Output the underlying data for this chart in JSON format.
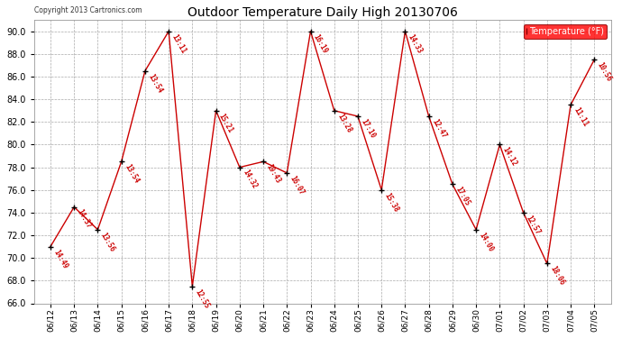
{
  "title": "Outdoor Temperature Daily High 20130706",
  "copyright": "Copyright 2013 Cartronics.com",
  "legend_label": "Temperature (°F)",
  "points": [
    [
      "06/12",
      71.0,
      "14:49"
    ],
    [
      "06/13",
      74.5,
      "14:37"
    ],
    [
      "06/14",
      72.5,
      "13:56"
    ],
    [
      "06/15",
      78.5,
      "13:54"
    ],
    [
      "06/16",
      86.5,
      "13:54"
    ],
    [
      "06/17",
      90.0,
      "13:11"
    ],
    [
      "06/18",
      67.5,
      "12:55"
    ],
    [
      "06/19",
      83.0,
      "15:21"
    ],
    [
      "06/20",
      78.0,
      "14:32"
    ],
    [
      "06/21",
      78.5,
      "19:43"
    ],
    [
      "06/22",
      77.5,
      "16:07"
    ],
    [
      "06/23",
      90.0,
      "16:19"
    ],
    [
      "06/24",
      83.0,
      "13:28"
    ],
    [
      "06/25",
      82.5,
      "17:10"
    ],
    [
      "06/26",
      76.0,
      "15:38"
    ],
    [
      "06/27",
      90.0,
      "14:33"
    ],
    [
      "06/28",
      82.5,
      "12:47"
    ],
    [
      "06/29",
      76.5,
      "17:05"
    ],
    [
      "06/30",
      72.5,
      "14:00"
    ],
    [
      "07/01",
      80.0,
      "14:12"
    ],
    [
      "07/02",
      74.0,
      "12:57"
    ],
    [
      "07/03",
      69.5,
      "18:06"
    ],
    [
      "07/04",
      83.5,
      "11:11"
    ],
    [
      "07/05",
      87.5,
      "10:56"
    ]
  ],
  "line_color": "#cc0000",
  "marker_color": "#000000",
  "background_color": "#ffffff",
  "grid_color": "#aaaaaa",
  "ylim": [
    66.0,
    91.0
  ],
  "yticks": [
    66.0,
    68.0,
    70.0,
    72.0,
    74.0,
    76.0,
    78.0,
    80.0,
    82.0,
    84.0,
    86.0,
    88.0,
    90.0
  ],
  "figwidth": 6.9,
  "figheight": 3.75,
  "dpi": 100
}
